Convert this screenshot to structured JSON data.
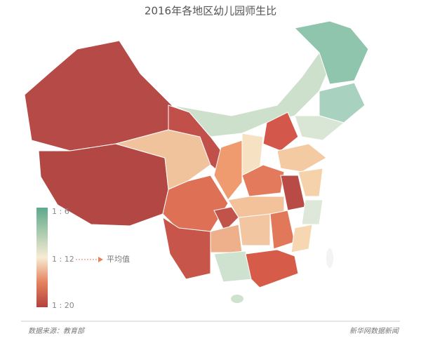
{
  "title": "2016年各地区幼儿园师生比",
  "legend": {
    "labels": [
      "1 : 6",
      "1 : 12",
      "1 : 20"
    ],
    "average_label": "平均值"
  },
  "footer": {
    "source": "数据来源：教育部",
    "credit": "新华网数据新闻"
  }
}
